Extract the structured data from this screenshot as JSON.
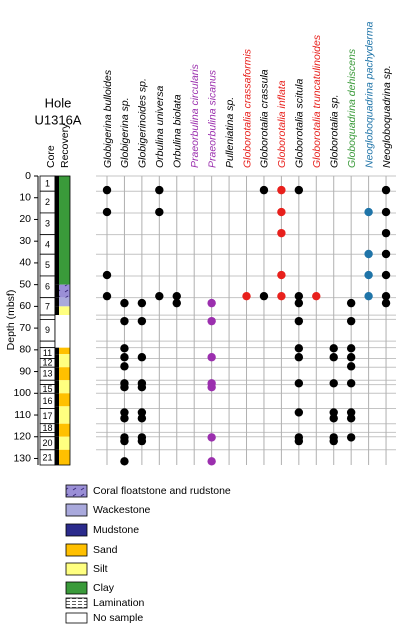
{
  "title": [
    "Hole",
    "U1316A"
  ],
  "column_labels": [
    "Core",
    "Recovery"
  ],
  "chart_data": {
    "type": "occurrence",
    "ylabel": "Depth (mbsf)",
    "ylim": [
      0,
      133
    ],
    "yticks": [
      0,
      10,
      20,
      30,
      40,
      50,
      60,
      70,
      80,
      90,
      100,
      110,
      120,
      130
    ],
    "series": [
      {
        "name": "Globigerina bulloides",
        "color": "#000000",
        "marker_color": "#000000",
        "values": [
          6.5,
          16.6,
          45.6,
          55.3
        ]
      },
      {
        "name": "Globigerina sp.",
        "color": "#000000",
        "marker_color": "#000000",
        "values": [
          58.5,
          66.8,
          79.3,
          83.4,
          87.6,
          95.4,
          97.2,
          108.8,
          111.5,
          120.3,
          122,
          131.3
        ]
      },
      {
        "name": "Globigerinoides sp.",
        "color": "#000000",
        "marker_color": "#000000",
        "values": [
          58.5,
          66.8,
          83.4,
          95.4,
          97.2,
          108.8,
          111.5,
          120.3,
          122
        ]
      },
      {
        "name": "Orbulina universa",
        "color": "#000000",
        "marker_color": "#000000",
        "values": [
          6.5,
          16.6,
          55.3
        ]
      },
      {
        "name": "Orbulina biolata",
        "color": "#000000",
        "marker_color": "#000000",
        "values": [
          55.3,
          58.5
        ]
      },
      {
        "name": "Praeorbulina circularis",
        "color": "#9b2fae",
        "marker_color": "#9b2fae",
        "values": []
      },
      {
        "name": "Praeorbulina sicanus",
        "color": "#9b2fae",
        "marker_color": "#9b2fae",
        "values": [
          58.5,
          66.8,
          83.4,
          95.4,
          97.2,
          120.3,
          131.3
        ]
      },
      {
        "name": "Pulleniatina sp.",
        "color": "#000000",
        "marker_color": "#000000",
        "values": []
      },
      {
        "name": "Globorotalia crassaformis",
        "color": "#e8201c",
        "marker_color": "#e8201c",
        "values": [
          55.3
        ]
      },
      {
        "name": "Globorotalia crassula",
        "color": "#000000",
        "marker_color": "#000000",
        "values": [
          6.5,
          55.3
        ]
      },
      {
        "name": "Globorotalia inflata",
        "color": "#e8201c",
        "marker_color": "#e8201c",
        "values": [
          6.5,
          16.6,
          26.3,
          45.6,
          55.3
        ]
      },
      {
        "name": "Globorotalia scitula",
        "color": "#000000",
        "marker_color": "#000000",
        "values": [
          6.5,
          55.3,
          58.5,
          66.8,
          79.3,
          83.4,
          95.4,
          108.8,
          120.3,
          122
        ]
      },
      {
        "name": "Globorotalia truncatulinoides",
        "color": "#e8201c",
        "marker_color": "#e8201c",
        "values": [
          55.3
        ]
      },
      {
        "name": "Globorotalia sp.",
        "color": "#000000",
        "marker_color": "#000000",
        "values": [
          79.3,
          83.4,
          95.4,
          108.8,
          111.5,
          120.3,
          122
        ]
      },
      {
        "name": "Globoquadrina dehiscens",
        "color": "#3a9a3a",
        "marker_color": "#000000",
        "values": [
          58.5,
          66.8,
          79.3,
          83.4,
          87.6,
          95.4,
          108.8,
          111.5,
          120.3
        ]
      },
      {
        "name": "Neogloboquadrina pachyderma",
        "color": "#1f74a8",
        "marker_color": "#1f74a8",
        "values": [
          16.6,
          35.9,
          45.6,
          55.3
        ]
      },
      {
        "name": "Neogloboquadrina sp.",
        "color": "#000000",
        "marker_color": "#000000",
        "values": [
          6.5,
          16.6,
          26.3,
          35.9,
          45.6,
          55.3,
          58.5
        ]
      }
    ]
  },
  "cores": [
    {
      "label": "1",
      "top": 0,
      "bottom": 7
    },
    {
      "label": "2",
      "top": 7,
      "bottom": 17
    },
    {
      "label": "3",
      "top": 17,
      "bottom": 27
    },
    {
      "label": "4",
      "top": 27,
      "bottom": 36
    },
    {
      "label": "5",
      "top": 36,
      "bottom": 46
    },
    {
      "label": "6",
      "top": 46,
      "bottom": 56
    },
    {
      "label": "7",
      "top": 56,
      "bottom": 64
    },
    {
      "label": null,
      "top": 64,
      "bottom": 66
    },
    {
      "label": "9",
      "top": 66,
      "bottom": 76
    },
    {
      "label": null,
      "top": 76,
      "bottom": 79
    },
    {
      "label": "11",
      "top": 79,
      "bottom": 84
    },
    {
      "label": "12",
      "top": 84,
      "bottom": 88
    },
    {
      "label": "13",
      "top": 88,
      "bottom": 94
    },
    {
      "label": null,
      "top": 94,
      "bottom": 96
    },
    {
      "label": "15",
      "top": 96,
      "bottom": 100
    },
    {
      "label": "16",
      "top": 100,
      "bottom": 107
    },
    {
      "label": "17",
      "top": 107,
      "bottom": 114
    },
    {
      "label": "18",
      "top": 114,
      "bottom": 118
    },
    {
      "label": null,
      "top": 118,
      "bottom": 120
    },
    {
      "label": "20",
      "top": 120,
      "bottom": 126
    },
    {
      "label": "21",
      "top": 126,
      "bottom": 133
    }
  ],
  "lithology": [
    {
      "top": 0,
      "bottom": 50,
      "type": "Clay"
    },
    {
      "top": 50,
      "bottom": 56,
      "type": "Coral floatstone and rudstone"
    },
    {
      "top": 56,
      "bottom": 60,
      "type": "Wackestone"
    },
    {
      "top": 60,
      "bottom": 64,
      "type": "Silt"
    },
    {
      "top": 64,
      "bottom": 79,
      "type": "No sample"
    },
    {
      "top": 79,
      "bottom": 82,
      "type": "Sand"
    },
    {
      "top": 82,
      "bottom": 88,
      "type": "Silt"
    },
    {
      "top": 88,
      "bottom": 94,
      "type": "Sand"
    },
    {
      "top": 94,
      "bottom": 100,
      "type": "Silt"
    },
    {
      "top": 100,
      "bottom": 106,
      "type": "Sand"
    },
    {
      "top": 106,
      "bottom": 114,
      "type": "Silt"
    },
    {
      "top": 114,
      "bottom": 120,
      "type": "Sand"
    },
    {
      "top": 120,
      "bottom": 126,
      "type": "Silt"
    },
    {
      "top": 126,
      "bottom": 133,
      "type": "Sand"
    }
  ],
  "legend": [
    {
      "name": "Coral floatstone and rudstone",
      "color": "#9a8fd6"
    },
    {
      "name": "Wackestone",
      "color": "#a9a9dc"
    },
    {
      "name": "Mudstone",
      "color": "#2b2b8c"
    },
    {
      "name": "Sand",
      "color": "#ffc000"
    },
    {
      "name": "Silt",
      "color": "#ffff80"
    },
    {
      "name": "Clay",
      "color": "#3a9a3a"
    },
    {
      "name": "Lamination",
      "color": "#ffffff"
    },
    {
      "name": "No sample",
      "color": "#ffffff"
    }
  ]
}
